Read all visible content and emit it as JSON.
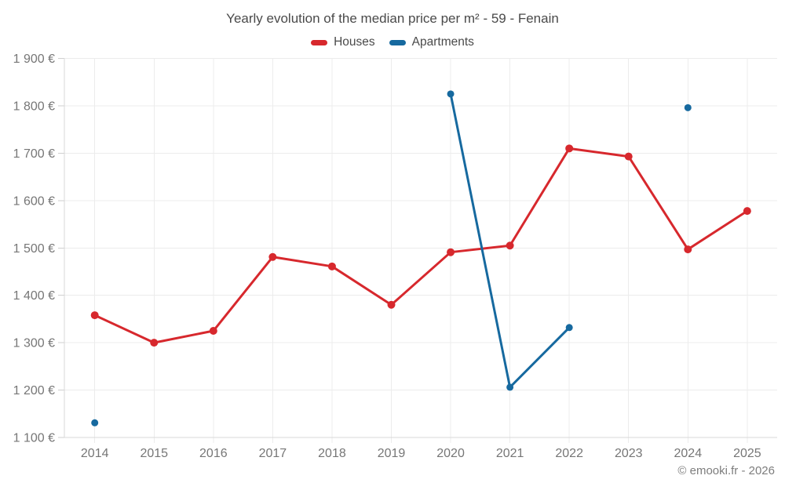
{
  "header": {
    "title": "Yearly evolution of the median price per m² - 59 - Fenain"
  },
  "footer": {
    "credit": "© emooki.fr - 2026"
  },
  "chart_data": {
    "type": "line",
    "title": "Yearly evolution of the median price per m² - 59 - Fenain",
    "categories": [
      "2014",
      "2015",
      "2016",
      "2017",
      "2018",
      "2019",
      "2020",
      "2021",
      "2022",
      "2023",
      "2024",
      "2025"
    ],
    "series": [
      {
        "name": "Houses",
        "color": "#d7282d",
        "marker_radius": 5,
        "values": [
          1358,
          1300,
          1325,
          1481,
          1461,
          1380,
          1491,
          1505,
          1710,
          1693,
          1497,
          1578
        ]
      },
      {
        "name": "Apartments",
        "color": "#16699f",
        "marker_radius": 4.5,
        "values": [
          1131,
          null,
          null,
          null,
          null,
          null,
          1825,
          1206,
          1332,
          null,
          1796,
          null
        ]
      }
    ],
    "ylim": [
      1100,
      1900
    ],
    "y_ticks": [
      1100,
      1200,
      1300,
      1400,
      1500,
      1600,
      1700,
      1800,
      1900
    ],
    "y_tick_labels": [
      "1 100 €",
      "1 200 €",
      "1 300 €",
      "1 400 €",
      "1 500 €",
      "1 600 €",
      "1 700 €",
      "1 800 €",
      "1 900 €"
    ],
    "grid": true,
    "legend_position": "top",
    "watermark": "© emooki.fr - 2026"
  },
  "colors": {
    "grid": "#ececec",
    "axis": "#d9d9d9",
    "tick": "#cfcfcf",
    "axis_label": "#767676",
    "title": "#4a4a4a",
    "watermark": "#7d7d7d"
  }
}
